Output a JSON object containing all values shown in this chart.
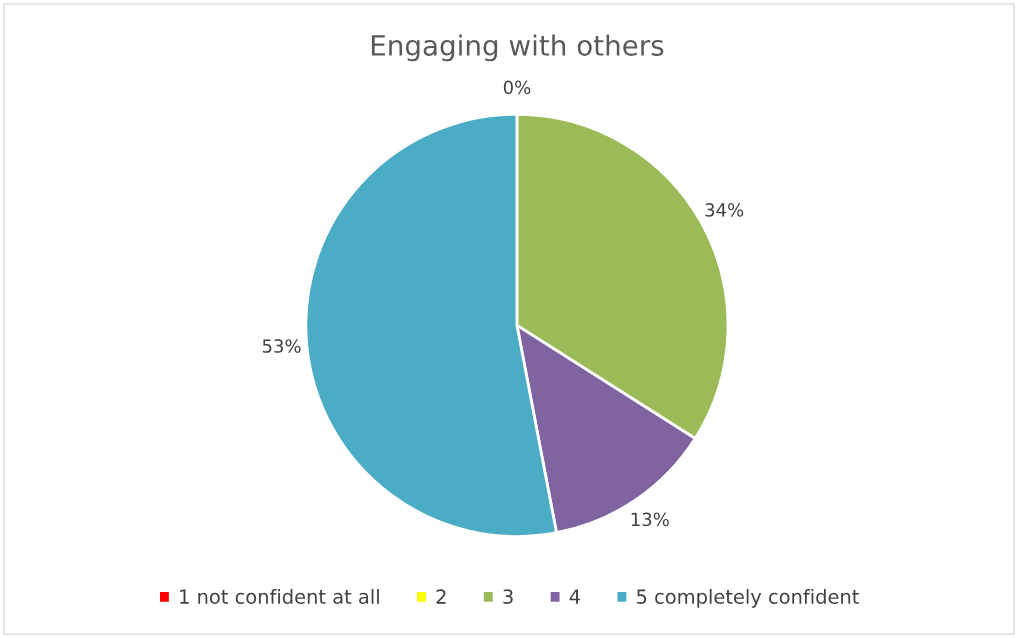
{
  "chart_data": {
    "type": "pie",
    "title": "Engaging with others",
    "categories": [
      "1 not confident at all",
      "2",
      "3",
      "4",
      "5 completely confident"
    ],
    "values": [
      0,
      0,
      34,
      13,
      53
    ],
    "colors": [
      "#ff0000",
      "#ffff00",
      "#9bbb59",
      "#8064a2",
      "#4bacc6"
    ],
    "value_labels": [
      "0%",
      null,
      "34%",
      "13%",
      "53%"
    ],
    "legend": "bottom"
  }
}
